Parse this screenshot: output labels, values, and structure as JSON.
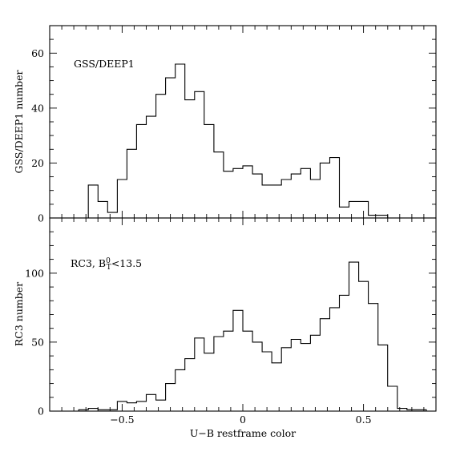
{
  "chart_data": [
    {
      "type": "histogram",
      "panel": "top",
      "annotation": "GSS/DEEP1",
      "ylabel": "GSS/DEEP1 number",
      "xlabel": "",
      "xlim": [
        -0.8,
        0.8
      ],
      "ylim": [
        0,
        70
      ],
      "yticks": [
        0,
        20,
        40,
        60
      ],
      "grid": false,
      "bin_width": 0.04,
      "bins": [
        {
          "x0": -0.64,
          "x1": -0.6,
          "count": 12
        },
        {
          "x0": -0.6,
          "x1": -0.56,
          "count": 6
        },
        {
          "x0": -0.56,
          "x1": -0.52,
          "count": 2
        },
        {
          "x0": -0.52,
          "x1": -0.48,
          "count": 14
        },
        {
          "x0": -0.48,
          "x1": -0.44,
          "count": 25
        },
        {
          "x0": -0.44,
          "x1": -0.4,
          "count": 34
        },
        {
          "x0": -0.4,
          "x1": -0.36,
          "count": 37
        },
        {
          "x0": -0.36,
          "x1": -0.32,
          "count": 45
        },
        {
          "x0": -0.32,
          "x1": -0.28,
          "count": 51
        },
        {
          "x0": -0.28,
          "x1": -0.24,
          "count": 56
        },
        {
          "x0": -0.24,
          "x1": -0.2,
          "count": 43
        },
        {
          "x0": -0.2,
          "x1": -0.16,
          "count": 46
        },
        {
          "x0": -0.16,
          "x1": -0.12,
          "count": 34
        },
        {
          "x0": -0.12,
          "x1": -0.08,
          "count": 24
        },
        {
          "x0": -0.08,
          "x1": -0.04,
          "count": 17
        },
        {
          "x0": -0.04,
          "x1": 0.0,
          "count": 18
        },
        {
          "x0": 0.0,
          "x1": 0.04,
          "count": 19
        },
        {
          "x0": 0.04,
          "x1": 0.08,
          "count": 16
        },
        {
          "x0": 0.08,
          "x1": 0.12,
          "count": 12
        },
        {
          "x0": 0.12,
          "x1": 0.16,
          "count": 12
        },
        {
          "x0": 0.16,
          "x1": 0.2,
          "count": 14
        },
        {
          "x0": 0.2,
          "x1": 0.24,
          "count": 16
        },
        {
          "x0": 0.24,
          "x1": 0.28,
          "count": 18
        },
        {
          "x0": 0.28,
          "x1": 0.32,
          "count": 14
        },
        {
          "x0": 0.32,
          "x1": 0.36,
          "count": 20
        },
        {
          "x0": 0.36,
          "x1": 0.4,
          "count": 22
        },
        {
          "x0": 0.4,
          "x1": 0.44,
          "count": 4
        },
        {
          "x0": 0.44,
          "x1": 0.48,
          "count": 6
        },
        {
          "x0": 0.48,
          "x1": 0.52,
          "count": 6
        },
        {
          "x0": 0.52,
          "x1": 0.56,
          "count": 1
        },
        {
          "x0": 0.56,
          "x1": 0.6,
          "count": 1
        }
      ]
    },
    {
      "type": "histogram",
      "panel": "bottom",
      "annotation": "RC3, B",
      "annotation_sup": "0",
      "annotation_sub": "T",
      "annotation_tail": "<13.5",
      "ylabel": "RC3 number",
      "xlabel": "U−B restframe color",
      "xlim": [
        -0.8,
        0.8
      ],
      "ylim": [
        0,
        140
      ],
      "xticks": [
        -0.5,
        0,
        0.5
      ],
      "xtick_labels": [
        "−0.5",
        "0",
        "0.5"
      ],
      "yticks": [
        0,
        50,
        100
      ],
      "grid": false,
      "bin_width": 0.04,
      "bins": [
        {
          "x0": -0.68,
          "x1": -0.64,
          "count": 1
        },
        {
          "x0": -0.64,
          "x1": -0.6,
          "count": 2
        },
        {
          "x0": -0.6,
          "x1": -0.56,
          "count": 1
        },
        {
          "x0": -0.56,
          "x1": -0.52,
          "count": 1
        },
        {
          "x0": -0.52,
          "x1": -0.48,
          "count": 7
        },
        {
          "x0": -0.48,
          "x1": -0.44,
          "count": 6
        },
        {
          "x0": -0.44,
          "x1": -0.4,
          "count": 7
        },
        {
          "x0": -0.4,
          "x1": -0.36,
          "count": 12
        },
        {
          "x0": -0.36,
          "x1": -0.32,
          "count": 8
        },
        {
          "x0": -0.32,
          "x1": -0.28,
          "count": 20
        },
        {
          "x0": -0.28,
          "x1": -0.24,
          "count": 30
        },
        {
          "x0": -0.24,
          "x1": -0.2,
          "count": 38
        },
        {
          "x0": -0.2,
          "x1": -0.16,
          "count": 53
        },
        {
          "x0": -0.16,
          "x1": -0.12,
          "count": 42
        },
        {
          "x0": -0.12,
          "x1": -0.08,
          "count": 54
        },
        {
          "x0": -0.08,
          "x1": -0.04,
          "count": 58
        },
        {
          "x0": -0.04,
          "x1": 0.0,
          "count": 73
        },
        {
          "x0": 0.0,
          "x1": 0.04,
          "count": 58
        },
        {
          "x0": 0.04,
          "x1": 0.08,
          "count": 50
        },
        {
          "x0": 0.08,
          "x1": 0.12,
          "count": 43
        },
        {
          "x0": 0.12,
          "x1": 0.16,
          "count": 35
        },
        {
          "x0": 0.16,
          "x1": 0.2,
          "count": 46
        },
        {
          "x0": 0.2,
          "x1": 0.24,
          "count": 52
        },
        {
          "x0": 0.24,
          "x1": 0.28,
          "count": 49
        },
        {
          "x0": 0.28,
          "x1": 0.32,
          "count": 55
        },
        {
          "x0": 0.32,
          "x1": 0.36,
          "count": 67
        },
        {
          "x0": 0.36,
          "x1": 0.4,
          "count": 75
        },
        {
          "x0": 0.4,
          "x1": 0.44,
          "count": 84
        },
        {
          "x0": 0.44,
          "x1": 0.48,
          "count": 108
        },
        {
          "x0": 0.48,
          "x1": 0.52,
          "count": 94
        },
        {
          "x0": 0.52,
          "x1": 0.56,
          "count": 78
        },
        {
          "x0": 0.56,
          "x1": 0.6,
          "count": 48
        },
        {
          "x0": 0.6,
          "x1": 0.64,
          "count": 18
        },
        {
          "x0": 0.64,
          "x1": 0.68,
          "count": 2
        },
        {
          "x0": 0.68,
          "x1": 0.72,
          "count": 1
        },
        {
          "x0": 0.72,
          "x1": 0.76,
          "count": 1
        }
      ]
    }
  ]
}
